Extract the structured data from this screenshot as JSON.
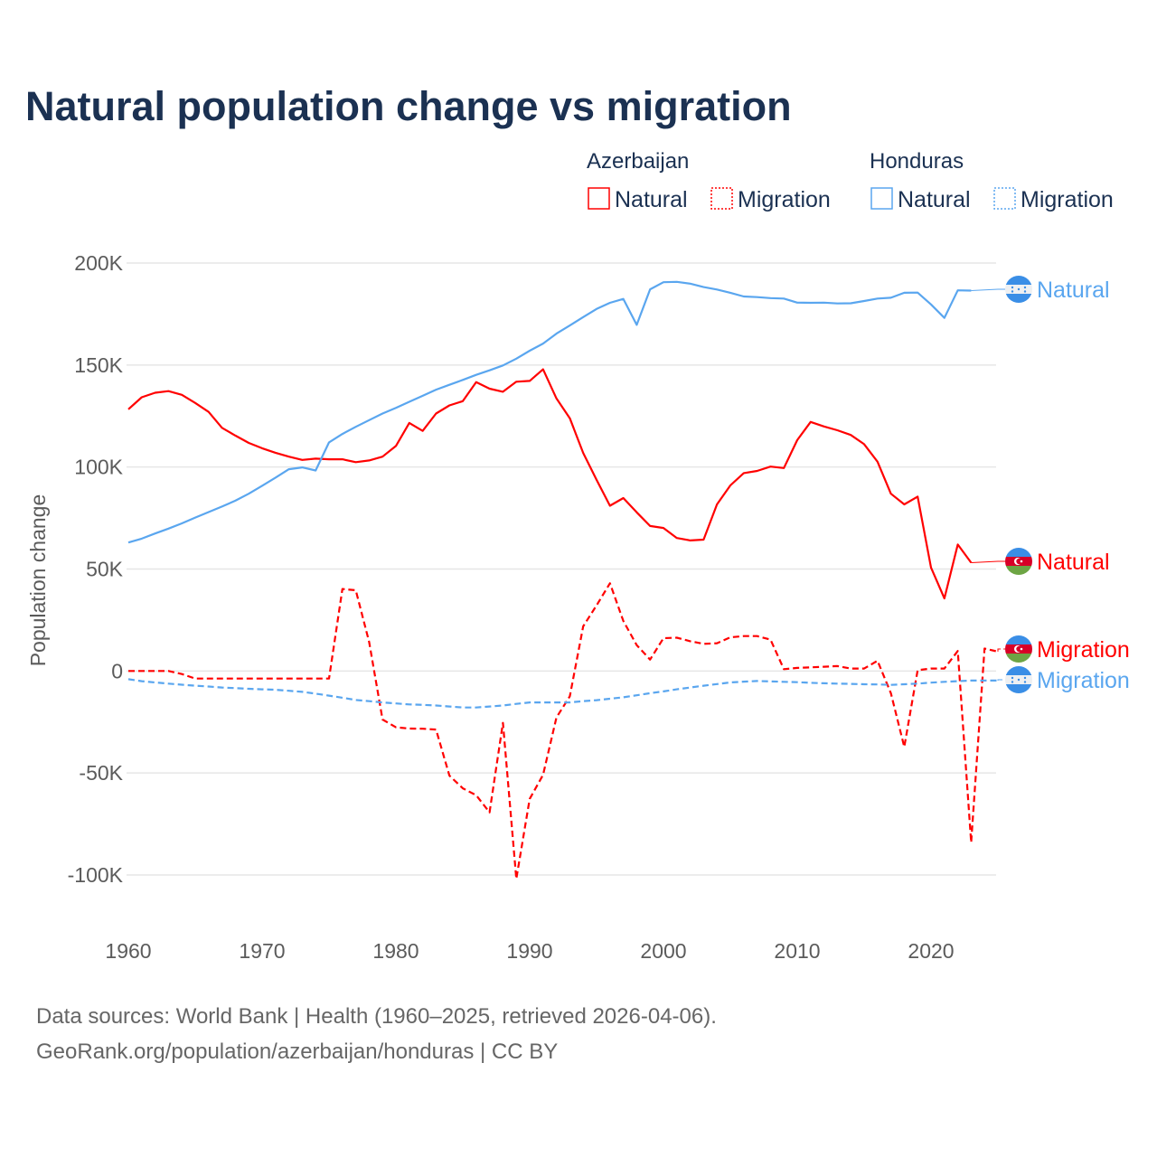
{
  "title": "Natural population change vs migration",
  "legend": {
    "groups": [
      {
        "name": "Azerbaijan",
        "color": "#ff0000",
        "items": [
          "Natural",
          "Migration"
        ]
      },
      {
        "name": "Honduras",
        "color": "#5aa6ef",
        "items": [
          "Natural",
          "Migration"
        ]
      }
    ]
  },
  "source_lines": [
    "Data sources: World Bank | Health (1960–2025, retrieved 2026-04-06).",
    "GeoRank.org/population/azerbaijan/honduras | CC BY"
  ],
  "chart_data": {
    "type": "line",
    "title": "Natural population change vs migration",
    "xlabel": "",
    "ylabel": "Population change",
    "unit": "thousands",
    "xlim": [
      1960,
      2025
    ],
    "ylim": [
      -100,
      200
    ],
    "x_ticks": [
      1960,
      1970,
      1980,
      1990,
      2000,
      2010,
      2020
    ],
    "x_tick_labels": [
      "1960",
      "1970",
      "1980",
      "1990",
      "2000",
      "2010",
      "2020"
    ],
    "y_ticks": [
      200,
      150,
      100,
      50,
      0,
      -50,
      -100
    ],
    "y_tick_labels": [
      "200K",
      "150K",
      "100K",
      "50K",
      "0",
      "-50K",
      "-100K"
    ],
    "grid": true,
    "legend_position": "top-right",
    "x_start": 1960,
    "series": [
      {
        "name": "Natural",
        "country": "Azerbaijan",
        "color": "#ff0000",
        "dash": "solid",
        "end_label": "Natural",
        "values": [
          128.3,
          134.2,
          136.4,
          137.2,
          135.4,
          131.4,
          127,
          119.2,
          115.4,
          111.8,
          109.2,
          107,
          105.1,
          103.5,
          104.1,
          103.8,
          103.8,
          102.4,
          103.2,
          105.1,
          110.3,
          121.6,
          117.7,
          126.2,
          130.2,
          132.3,
          141.6,
          138.4,
          136.9,
          141.8,
          142.2,
          147.9,
          133.6,
          123.9,
          106.9,
          93.7,
          81,
          84.8,
          77.8,
          71.1,
          70.1,
          65.2,
          64,
          64.4,
          81.7,
          91,
          97,
          98.1,
          100.2,
          99.5,
          113.2,
          122.1,
          119.9,
          118,
          115.7,
          111.2,
          102.6,
          86.9,
          81.7,
          85.5,
          50.7,
          35.6,
          62,
          53.1
        ]
      },
      {
        "name": "Migration",
        "country": "Azerbaijan",
        "color": "#ff0000",
        "dash": "dashed",
        "end_label": "Migration",
        "values": [
          0,
          0,
          0,
          0,
          -1.5,
          -3.7,
          -3.7,
          -3.7,
          -3.7,
          -3.7,
          -3.7,
          -3.7,
          -3.7,
          -3.7,
          -3.7,
          -3.7,
          40.2,
          39.6,
          14.2,
          -23.8,
          -27.6,
          -28.2,
          -28.3,
          -28.7,
          -51.3,
          -57.5,
          -60.9,
          -69.3,
          -25.4,
          -101.9,
          -62.7,
          -50.9,
          -22.8,
          -12.4,
          21.9,
          32.2,
          43,
          24.5,
          12.7,
          5.6,
          16.1,
          16.3,
          14.6,
          13.3,
          13.6,
          16.5,
          17.1,
          17.1,
          15.4,
          0.9,
          1.5,
          1.8,
          2.1,
          2.4,
          1.2,
          1.2,
          5,
          -10.9,
          -37.2,
          0.4,
          1.2,
          1.2,
          9.8,
          -84.1,
          11,
          9.5
        ]
      },
      {
        "name": "Natural",
        "country": "Honduras",
        "color": "#5aa6ef",
        "dash": "solid",
        "end_label": "Natural",
        "values": [
          63,
          64.9,
          67.4,
          69.8,
          72.4,
          75.2,
          77.9,
          80.6,
          83.5,
          86.9,
          90.8,
          94.8,
          98.9,
          99.8,
          98.3,
          112.1,
          116.2,
          119.7,
          123,
          126.2,
          129,
          132,
          134.9,
          137.9,
          140.3,
          142.7,
          145.2,
          147.4,
          149.8,
          153.1,
          157,
          160.5,
          165.4,
          169.4,
          173.5,
          177.5,
          180.5,
          182.4,
          169.7,
          187.1,
          190.6,
          190.8,
          189.9,
          188.2,
          187,
          185.4,
          183.6,
          183.3,
          182.8,
          182.6,
          180.6,
          180.5,
          180.6,
          180.2,
          180.3,
          181.4,
          182.6,
          183,
          185.4,
          185.5,
          179.7,
          173.1,
          186.6,
          186.5
        ]
      },
      {
        "name": "Migration",
        "country": "Honduras",
        "color": "#5aa6ef",
        "dash": "dashed",
        "end_label": "Migration",
        "values": [
          -4,
          -5,
          -5.6,
          -6.2,
          -6.7,
          -7.2,
          -7.6,
          -8.1,
          -8.4,
          -8.7,
          -9,
          -9.2,
          -9.7,
          -10.2,
          -11.1,
          -12.1,
          -13.1,
          -14.2,
          -14.8,
          -15.4,
          -15.9,
          -16.4,
          -16.6,
          -16.9,
          -17.4,
          -17.9,
          -17.9,
          -17.4,
          -16.9,
          -16.1,
          -15.4,
          -15.4,
          -15.4,
          -15.4,
          -14.8,
          -14.3,
          -13.6,
          -12.9,
          -11.9,
          -10.9,
          -10,
          -9,
          -8.1,
          -7.2,
          -6.4,
          -5.6,
          -5.2,
          -4.9,
          -5.1,
          -5.3,
          -5.5,
          -5.8,
          -6,
          -6.2,
          -6.3,
          -6.5,
          -6.6,
          -6.8,
          -6.5,
          -6.2,
          -5.7,
          -5.3,
          -5,
          -4.7,
          -4.7,
          -4.7
        ]
      }
    ]
  }
}
